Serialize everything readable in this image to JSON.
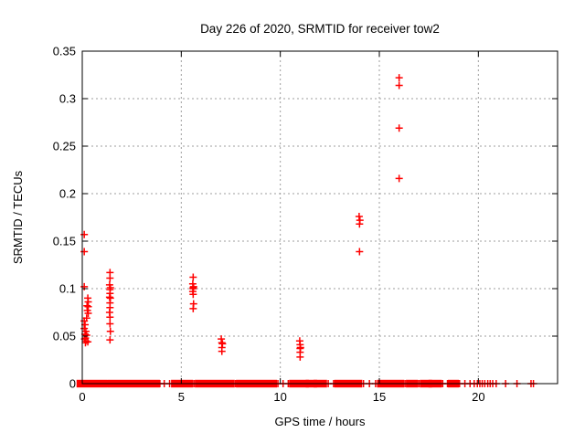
{
  "chart_data": {
    "type": "scatter",
    "title": "Day 226 of 2020, SRMTID for receiver tow2",
    "xlabel": "GPS time / hours",
    "ylabel": "SRMTID / TECUs",
    "xlim": [
      0,
      24
    ],
    "ylim": [
      0,
      0.35
    ],
    "grid": true,
    "legend": "none",
    "x_ticks": {
      "values": [
        0,
        5,
        10,
        15,
        20
      ],
      "labels": [
        "0",
        "5",
        "10",
        "15",
        "20"
      ]
    },
    "y_ticks": {
      "values": [
        0,
        0.05,
        0.1,
        0.15,
        0.2,
        0.25,
        0.3,
        0.35
      ],
      "labels": [
        "0",
        "0.05",
        "0.1",
        "0.15",
        "0.2",
        "0.25",
        "0.3",
        "0.35"
      ]
    },
    "colors": {
      "marker": "#ff0000",
      "grid": "#9e9e9e",
      "frame": "#000000",
      "background": "#ffffff"
    },
    "marker": {
      "shape": "plus",
      "size": 9
    },
    "points": [
      [
        0.1,
        0.157
      ],
      [
        0.1,
        0.139
      ],
      [
        0.1,
        0.102
      ],
      [
        0.28,
        0.09
      ],
      [
        0.3,
        0.086
      ],
      [
        0.24,
        0.082
      ],
      [
        0.3,
        0.081
      ],
      [
        0.26,
        0.077
      ],
      [
        0.3,
        0.074
      ],
      [
        0.22,
        0.069
      ],
      [
        0.1,
        0.066
      ],
      [
        0.14,
        0.062
      ],
      [
        0.1,
        0.058
      ],
      [
        0.18,
        0.055
      ],
      [
        0.14,
        0.052
      ],
      [
        0.22,
        0.051
      ],
      [
        0.16,
        0.048
      ],
      [
        0.12,
        0.047
      ],
      [
        0.18,
        0.045
      ],
      [
        0.28,
        0.044
      ],
      [
        0.16,
        0.043
      ],
      [
        1.4,
        0.117
      ],
      [
        1.4,
        0.111
      ],
      [
        1.38,
        0.104
      ],
      [
        1.42,
        0.101
      ],
      [
        1.4,
        0.099
      ],
      [
        1.4,
        0.095
      ],
      [
        1.38,
        0.091
      ],
      [
        1.42,
        0.09
      ],
      [
        1.4,
        0.085
      ],
      [
        1.4,
        0.08
      ],
      [
        1.38,
        0.075
      ],
      [
        1.4,
        0.07
      ],
      [
        1.4,
        0.063
      ],
      [
        1.42,
        0.055
      ],
      [
        1.4,
        0.046
      ],
      [
        5.6,
        0.112
      ],
      [
        5.58,
        0.105
      ],
      [
        5.62,
        0.102
      ],
      [
        5.6,
        0.101
      ],
      [
        5.6,
        0.1
      ],
      [
        5.58,
        0.097
      ],
      [
        5.6,
        0.094
      ],
      [
        5.62,
        0.084
      ],
      [
        5.6,
        0.079
      ],
      [
        7.02,
        0.047
      ],
      [
        7.05,
        0.043
      ],
      [
        7.08,
        0.042
      ],
      [
        7.05,
        0.038
      ],
      [
        7.05,
        0.034
      ],
      [
        10.98,
        0.045
      ],
      [
        11.0,
        0.041
      ],
      [
        11.02,
        0.038
      ],
      [
        11.0,
        0.037
      ],
      [
        11.0,
        0.033
      ],
      [
        11.0,
        0.028
      ],
      [
        13.98,
        0.176
      ],
      [
        14.02,
        0.172
      ],
      [
        14.0,
        0.168
      ],
      [
        14.0,
        0.139
      ],
      [
        16.0,
        0.322
      ],
      [
        16.0,
        0.314
      ],
      [
        16.0,
        0.269
      ],
      [
        16.0,
        0.216
      ]
    ],
    "baseline_y": 0,
    "baseline_segments": [
      [
        -0.15,
        1.12
      ],
      [
        1.22,
        1.3
      ],
      [
        1.4,
        3.78
      ],
      [
        3.86,
        3.98
      ],
      [
        4.08,
        4.2
      ],
      [
        4.3,
        4.52
      ],
      [
        4.62,
        5.46
      ],
      [
        5.56,
        5.72
      ],
      [
        5.82,
        7.56
      ],
      [
        7.68,
        7.8
      ],
      [
        7.9,
        9.7
      ],
      [
        9.8,
        9.96
      ],
      [
        10.06,
        10.22
      ],
      [
        10.32,
        10.48
      ],
      [
        10.58,
        11.3
      ],
      [
        11.42,
        11.72
      ],
      [
        11.82,
        12.22
      ],
      [
        12.32,
        12.52
      ],
      [
        12.62,
        12.76
      ],
      [
        12.86,
        14.0
      ],
      [
        14.12,
        14.28
      ],
      [
        14.4,
        14.6
      ],
      [
        14.7,
        14.92
      ],
      [
        15.02,
        16.12
      ],
      [
        16.22,
        16.38
      ],
      [
        16.48,
        16.82
      ],
      [
        16.92,
        17.08
      ],
      [
        17.18,
        17.52
      ],
      [
        17.62,
        18.02
      ],
      [
        18.12,
        18.28
      ],
      [
        18.38,
        18.5
      ],
      [
        18.6,
        18.88
      ],
      [
        18.98,
        19.12
      ],
      [
        19.22,
        19.42
      ],
      [
        19.52,
        19.64
      ],
      [
        19.74,
        19.84
      ],
      [
        19.92,
        19.98
      ],
      [
        20.05,
        20.1
      ],
      [
        20.17,
        20.22
      ],
      [
        20.3,
        20.35
      ],
      [
        20.45,
        20.5
      ],
      [
        20.57,
        20.62
      ],
      [
        20.7,
        20.75
      ],
      [
        20.85,
        20.95
      ],
      [
        21.3,
        21.45
      ],
      [
        21.9,
        22.0
      ],
      [
        22.64,
        22.68
      ],
      [
        22.76,
        22.8
      ]
    ]
  }
}
